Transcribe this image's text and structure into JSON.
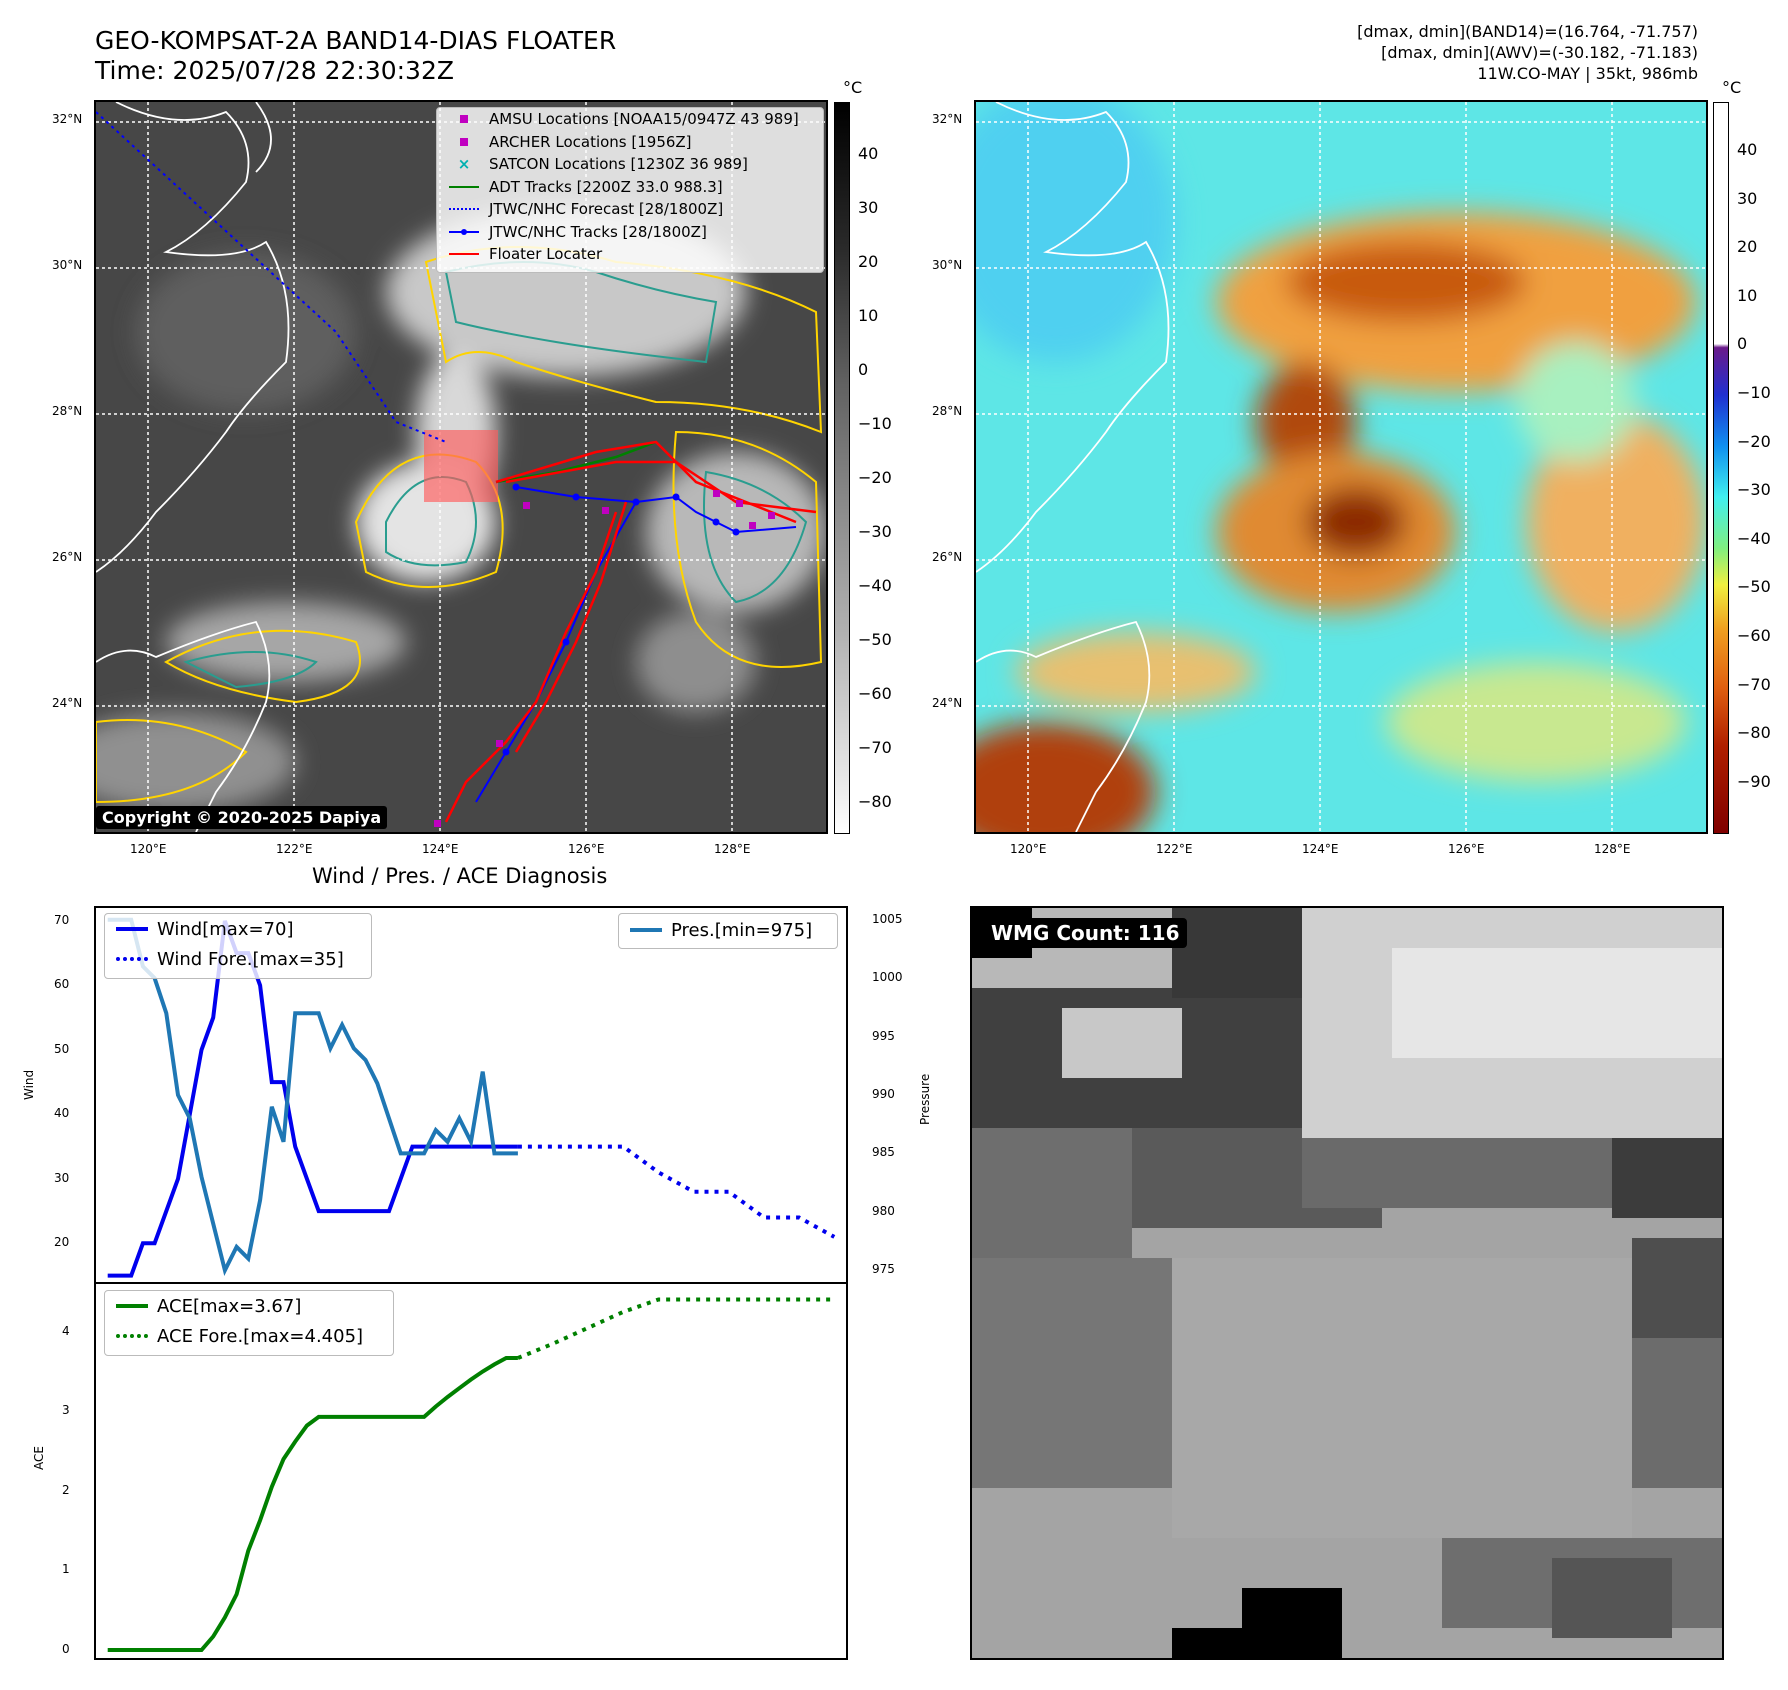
{
  "header": {
    "title": "GEO-KOMPSAT-2A BAND14-DIAS FLOATER",
    "time": "Time: 2025/07/28 22:30:32Z",
    "info_line1": "[dmax, dmin](BAND14)=(16.764, -71.757)",
    "info_line2": "[dmax, dmin](AWV)=(-30.182, -71.183)",
    "info_line3": "11W.CO-MAY | 35kt, 986mb"
  },
  "map_ir": {
    "lat_labels": [
      "32°N",
      "30°N",
      "28°N",
      "26°N",
      "24°N"
    ],
    "lon_labels": [
      "120°E",
      "122°E",
      "124°E",
      "126°E",
      "128°E"
    ],
    "copyright": "Copyright © 2020-2025 Dapiya",
    "colorbar_unit": "°C",
    "colorbar_ticks": [
      "40",
      "30",
      "20",
      "10",
      "0",
      "−10",
      "−20",
      "−30",
      "−40",
      "−50",
      "−60",
      "−70",
      "−80"
    ],
    "legend": [
      {
        "label": "AMSU Locations [NOAA15/0947Z 43 989]",
        "marker": "square",
        "color": "#c000c0"
      },
      {
        "label": "ARCHER Locations [1956Z]",
        "marker": "square",
        "color": "#c000c0"
      },
      {
        "label": "SATCON Locations [1230Z 36 989]",
        "marker": "x",
        "color": "#00b0b0"
      },
      {
        "label": "ADT Tracks [2200Z 33.0 988.3]",
        "marker": "line",
        "color": "#008000"
      },
      {
        "label": "JTWC/NHC Forecast [28/1800Z]",
        "marker": "dotted",
        "color": "#0000ff"
      },
      {
        "label": "JTWC/NHC Tracks [28/1800Z]",
        "marker": "line-dot",
        "color": "#0000ff"
      },
      {
        "label": "Floater Locater",
        "marker": "line",
        "color": "#ff0000"
      }
    ]
  },
  "map_wv": {
    "lat_labels": [
      "32°N",
      "30°N",
      "28°N",
      "26°N",
      "24°N"
    ],
    "lon_labels": [
      "120°E",
      "122°E",
      "124°E",
      "126°E",
      "128°E"
    ],
    "colorbar_unit": "°C",
    "colorbar_ticks": [
      "40",
      "30",
      "20",
      "10",
      "0",
      "−10",
      "−20",
      "−30",
      "−40",
      "−50",
      "−60",
      "−70",
      "−80",
      "−90"
    ]
  },
  "wmg": {
    "label": "WMG Count: 116"
  },
  "chart_data": [
    {
      "type": "line",
      "title": "Wind / Pres. / ACE Diagnosis",
      "ylabel": "Wind",
      "y2label": "Pressure",
      "ylim": [
        14,
        72
      ],
      "y2lim": [
        974,
        1006
      ],
      "yticks": [
        20,
        30,
        40,
        50,
        60,
        70
      ],
      "y2ticks": [
        975,
        980,
        985,
        990,
        995,
        1000,
        1005
      ],
      "series": [
        {
          "name": "Wind[max=70]",
          "color": "#0000ee",
          "style": "solid",
          "x": [
            0,
            1,
            2,
            3,
            4,
            5,
            6,
            7,
            8,
            9,
            10,
            11,
            12,
            13,
            14,
            15,
            16,
            17,
            18,
            19,
            20,
            21,
            22,
            23,
            24,
            25,
            26,
            27,
            28,
            29,
            30,
            31,
            32,
            33,
            34,
            35
          ],
          "values": [
            15,
            15,
            15,
            20,
            20,
            25,
            30,
            40,
            50,
            55,
            70,
            65,
            65,
            60,
            45,
            45,
            35,
            30,
            25,
            25,
            25,
            25,
            25,
            25,
            25,
            30,
            35,
            35,
            35,
            35,
            35,
            35,
            35,
            35,
            35,
            35
          ]
        },
        {
          "name": "Wind Fore.[max=35]",
          "color": "#0000ee",
          "style": "dotted",
          "x": [
            35,
            38,
            41,
            44,
            47,
            50,
            53,
            56,
            59,
            62
          ],
          "values": [
            35,
            35,
            35,
            35,
            31,
            28,
            28,
            24,
            24,
            21
          ]
        },
        {
          "name": "Pres.[min=975]",
          "color": "#1f77b4",
          "style": "solid",
          "axis": "y2",
          "x": [
            0,
            1,
            2,
            3,
            4,
            5,
            6,
            7,
            8,
            9,
            10,
            11,
            12,
            13,
            14,
            15,
            16,
            17,
            18,
            19,
            20,
            21,
            22,
            23,
            24,
            25,
            26,
            27,
            28,
            29,
            30,
            31,
            32,
            33,
            34,
            35
          ],
          "values": [
            1005,
            1005,
            1005,
            1001,
            1000,
            997,
            990,
            988,
            983,
            979,
            975,
            977,
            976,
            981,
            989,
            986,
            997,
            997,
            997,
            994,
            996,
            994,
            993,
            991,
            988,
            985,
            985,
            985,
            987,
            986,
            988,
            986,
            992,
            985,
            985,
            985
          ]
        }
      ]
    },
    {
      "type": "line",
      "ylabel": "ACE",
      "ylim": [
        -0.1,
        4.6
      ],
      "yticks": [
        0,
        1,
        2,
        3,
        4
      ],
      "series": [
        {
          "name": "ACE[max=3.67]",
          "color": "#008000",
          "style": "solid",
          "x": [
            0,
            8,
            9,
            10,
            11,
            12,
            13,
            14,
            15,
            16,
            17,
            18,
            19,
            20,
            21,
            22,
            23,
            24,
            25,
            26,
            27,
            28,
            29,
            30,
            31,
            32,
            33,
            34,
            35
          ],
          "values": [
            0,
            0,
            0.17,
            0.41,
            0.7,
            1.25,
            1.63,
            2.05,
            2.4,
            2.62,
            2.82,
            2.93,
            2.93,
            2.93,
            2.93,
            2.93,
            2.93,
            2.93,
            2.93,
            2.93,
            2.93,
            3.06,
            3.18,
            3.29,
            3.4,
            3.5,
            3.59,
            3.67,
            3.67
          ]
        },
        {
          "name": "ACE Fore.[max=4.405]",
          "color": "#008000",
          "style": "dotted",
          "x": [
            35,
            38,
            41,
            44,
            47,
            50,
            53,
            56,
            59,
            62
          ],
          "values": [
            3.67,
            3.85,
            4.05,
            4.25,
            4.405,
            4.405,
            4.405,
            4.405,
            4.405,
            4.405
          ]
        }
      ]
    }
  ]
}
